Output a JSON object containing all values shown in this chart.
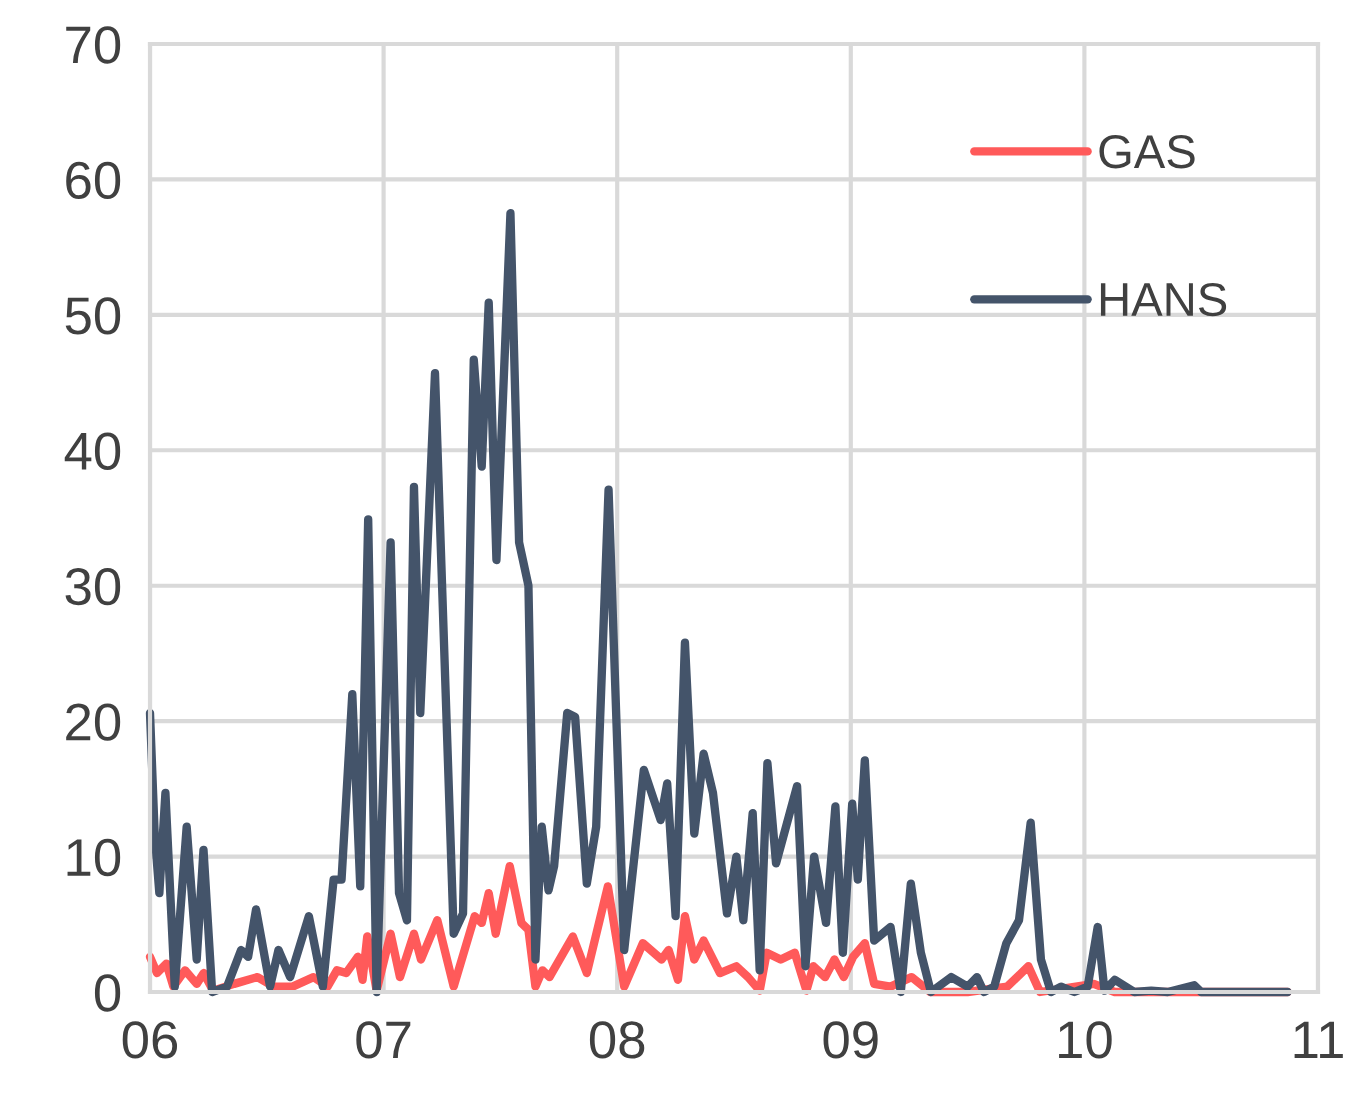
{
  "chart_data": {
    "type": "line",
    "xlim": [
      6,
      11
    ],
    "ylim": [
      0,
      70
    ],
    "xticks": [
      {
        "value": 6,
        "label": "06"
      },
      {
        "value": 7,
        "label": "07"
      },
      {
        "value": 8,
        "label": "08"
      },
      {
        "value": 9,
        "label": "09"
      },
      {
        "value": 10,
        "label": "10"
      },
      {
        "value": 11,
        "label": "11"
      }
    ],
    "yticks": [
      0,
      10,
      20,
      30,
      40,
      50,
      60,
      70
    ],
    "grid": true,
    "legend": "top right",
    "marker": "none",
    "line_style": "solid",
    "series": [
      {
        "name": "GAS",
        "color": "#ff5a5a",
        "x": [
          6.0,
          6.03,
          6.07,
          6.1,
          6.15,
          6.2,
          6.23,
          6.27,
          6.36,
          6.46,
          6.53,
          6.61,
          6.7,
          6.76,
          6.8,
          6.84,
          6.89,
          6.91,
          6.93,
          6.97,
          7.03,
          7.07,
          7.13,
          7.16,
          7.23,
          7.3,
          7.39,
          7.42,
          7.45,
          7.48,
          7.54,
          7.59,
          7.62,
          7.65,
          7.68,
          7.71,
          7.81,
          7.87,
          7.96,
          8.03,
          8.11,
          8.19,
          8.22,
          8.26,
          8.29,
          8.33,
          8.37,
          8.44,
          8.51,
          8.56,
          8.61,
          8.64,
          8.7,
          8.76,
          8.81,
          8.84,
          8.89,
          8.93,
          8.97,
          9.01,
          9.06,
          9.1,
          9.17,
          9.26,
          9.34,
          9.5,
          9.67,
          9.76,
          9.81,
          10.04,
          10.13,
          10.87
        ],
        "values": [
          2.6,
          1.4,
          2.1,
          0.4,
          1.6,
          0.6,
          1.4,
          0.1,
          0.6,
          1.1,
          0.4,
          0.4,
          1.1,
          0.4,
          1.6,
          1.4,
          2.6,
          0.9,
          4.1,
          0.1,
          4.3,
          1.1,
          4.3,
          2.4,
          5.3,
          0.4,
          5.6,
          5.1,
          7.3,
          4.3,
          9.3,
          5.1,
          4.6,
          0.4,
          1.6,
          1.1,
          4.1,
          1.4,
          7.8,
          0.4,
          3.6,
          2.4,
          3.1,
          0.9,
          5.6,
          2.4,
          3.8,
          1.4,
          1.9,
          1.1,
          0.1,
          2.9,
          2.4,
          2.9,
          0.1,
          1.9,
          1.1,
          2.4,
          1.1,
          2.6,
          3.6,
          0.6,
          0.4,
          1.1,
          0,
          0,
          0.4,
          1.9,
          0,
          0.6,
          0,
          0
        ]
      },
      {
        "name": "HANS",
        "color": "#44546a",
        "x": [
          6.0,
          6.02,
          6.04,
          6.066,
          6.106,
          6.157,
          6.2,
          6.229,
          6.266,
          6.33,
          6.39,
          6.42,
          6.454,
          6.514,
          6.55,
          6.6,
          6.68,
          6.74,
          6.786,
          6.82,
          6.866,
          6.9,
          6.934,
          6.97,
          7.03,
          7.066,
          7.1,
          7.13,
          7.157,
          7.22,
          7.3,
          7.34,
          7.386,
          7.42,
          7.45,
          7.483,
          7.543,
          7.58,
          7.62,
          7.65,
          7.677,
          7.706,
          7.73,
          7.786,
          7.82,
          7.87,
          7.91,
          7.963,
          8.03,
          8.114,
          8.186,
          8.214,
          8.25,
          8.29,
          8.33,
          8.37,
          8.41,
          8.47,
          8.51,
          8.54,
          8.58,
          8.61,
          8.643,
          8.68,
          8.77,
          8.806,
          8.843,
          8.894,
          8.934,
          8.966,
          9.006,
          9.03,
          9.06,
          9.1,
          9.17,
          9.214,
          9.257,
          9.3,
          9.343,
          9.43,
          9.5,
          9.54,
          9.57,
          9.614,
          9.666,
          9.72,
          9.77,
          9.814,
          9.857,
          9.9,
          9.957,
          10.014,
          10.057,
          10.086,
          10.13,
          10.214,
          10.286,
          10.357,
          10.47,
          10.5,
          10.87
        ],
        "values": [
          20.6,
          11.7,
          7.3,
          14.7,
          0.4,
          12.2,
          2.4,
          10.5,
          0,
          0.4,
          3.1,
          2.6,
          6.1,
          0.4,
          3.1,
          1.1,
          5.6,
          0.4,
          8.3,
          8.3,
          22,
          7.8,
          34.9,
          0,
          33.2,
          7.3,
          5.3,
          37.3,
          20.6,
          45.7,
          4.3,
          5.8,
          46.7,
          38.8,
          50.9,
          31.9,
          57.5,
          33.2,
          30,
          2.4,
          12.2,
          7.5,
          9.3,
          20.6,
          20.3,
          8,
          12.2,
          37.1,
          3.1,
          16.4,
          12.7,
          15.4,
          5.6,
          25.8,
          11.7,
          17.6,
          14.7,
          5.8,
          10,
          5.3,
          13.2,
          1.6,
          16.9,
          9.5,
          15.2,
          1.9,
          10,
          5.1,
          13.7,
          2.9,
          13.9,
          8.3,
          17.1,
          3.8,
          4.8,
          0,
          8,
          2.9,
          0,
          1.1,
          0.4,
          1.1,
          0,
          0.4,
          3.6,
          5.3,
          12.5,
          2.4,
          0,
          0.4,
          0,
          0.4,
          4.8,
          0.1,
          0.9,
          0,
          0.1,
          0,
          0.5,
          0,
          0
        ]
      }
    ]
  }
}
